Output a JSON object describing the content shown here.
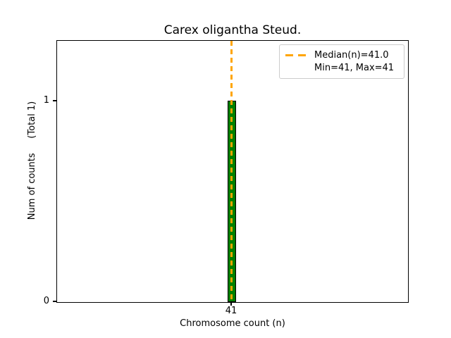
{
  "figure": {
    "title": "Carex oligantha Steud.",
    "xlabel": "Chromosome count (n)",
    "ylabel": "Num of counts     (Total 1)",
    "x_ticks": [
      "41"
    ],
    "y_ticks": [
      "0",
      "1"
    ],
    "legend": {
      "median_label": "Median(n)=41.0",
      "minmax_label": "Min=41, Max=41"
    },
    "colors": {
      "bar_fill": "#008000",
      "bar_edge": "#000000",
      "median_line": "#FFA500",
      "legend_border": "#cccccc",
      "spine": "#000000",
      "background": "#ffffff"
    }
  },
  "chart_data": {
    "type": "bar",
    "title": "Carex oligantha Steud.",
    "xlabel": "Chromosome count (n)",
    "ylabel": "Num of counts     (Total 1)",
    "categories": [
      41
    ],
    "values": [
      1
    ],
    "total_counts": 1,
    "median": 41.0,
    "min": 41,
    "max": 41,
    "xtick_labels": [
      "41"
    ],
    "ytick_labels": [
      "0",
      "1"
    ],
    "ylim": [
      0,
      1.3
    ],
    "grid": false,
    "legend_position": "upper right",
    "legend_entries": [
      "Median(n)=41.0",
      "Min=41, Max=41"
    ],
    "annotations": []
  }
}
